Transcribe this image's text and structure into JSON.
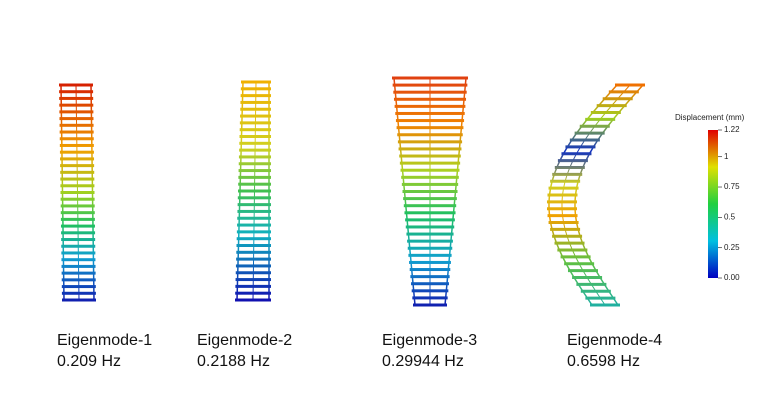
{
  "panels": [
    {
      "label": "Eigenmode-1",
      "frequency": "0.209 Hz"
    },
    {
      "label": "Eigenmode-2",
      "frequency": "0.2188 Hz"
    },
    {
      "label": "Eigenmode-3",
      "frequency": "0.29944 Hz"
    },
    {
      "label": "Eigenmode-4",
      "frequency": "0.6598 Hz"
    }
  ],
  "colorbar": {
    "title": "Displacement (mm)",
    "ticks": [
      {
        "value": 1.22,
        "label": "1.22"
      },
      1,
      0.75,
      0.5,
      0.25,
      {
        "value": 0,
        "label": "0.00"
      }
    ]
  }
}
